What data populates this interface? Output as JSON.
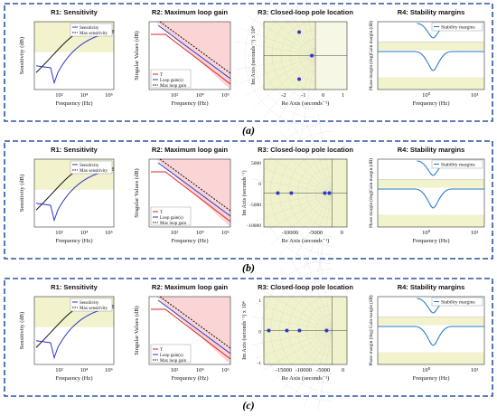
{
  "figure": {
    "rows": [
      {
        "caption": "(a)",
        "panels": {
          "r1": {
            "title": "R1: Sensitivity",
            "ylabel": "Sensitivity (dB)",
            "xlabel": "Frequency (Hz)",
            "xticks": [
              "10²",
              "10⁴",
              "10⁶"
            ],
            "legend": [
              "Sensitivity",
              "Max sensitivity"
            ]
          },
          "r2": {
            "title": "R2: Maximum loop gain",
            "ylabel": "Singular Values (dB)",
            "xlabel": "Frequency (Hz)",
            "xticks": [
              "10²",
              "10⁴",
              "10⁶"
            ],
            "legend": [
              "T",
              "Loop gain(s)",
              "Max loop gain"
            ]
          },
          "r3": {
            "title": "R3: Closed-loop pole location",
            "ylabel": "Im Axis (seconds⁻¹) x 10⁴",
            "xlabel": "Re Axis (seconds⁻¹)",
            "xticks": [
              "-2",
              "-1",
              "0",
              "1"
            ],
            "yticks": []
          },
          "r4": {
            "title": "R4: Stability margins",
            "ylabel": "Phase margin (deg)Gain margin (dB)",
            "xlabel": "Frequency (Hz)",
            "xticks": [
              "10⁰",
              "10¹"
            ],
            "legend": [
              "Stability margins"
            ]
          }
        }
      },
      {
        "caption": "(b)",
        "panels": {
          "r1": {
            "title": "R1: Sensitivity",
            "ylabel": "Sensitivity (dB)",
            "xlabel": "Frequency (Hz)",
            "xticks": [
              "10²",
              "10⁴",
              "10⁶"
            ],
            "legend": [
              "Sensitivity",
              "Max sensitivity"
            ]
          },
          "r2": {
            "title": "R2: Maximum loop gain",
            "ylabel": "Singular Values (dB)",
            "xlabel": "Frequency (Hz)",
            "xticks": [
              "10²",
              "10⁴",
              "10⁶"
            ],
            "legend": [
              "T",
              "Loop gain(s)",
              "Max loop gain"
            ]
          },
          "r3": {
            "title": "R3: Closed-loop pole location",
            "ylabel": "Im Axis (seconds⁻¹)",
            "xlabel": "Re Axis (seconds⁻¹)",
            "xticks": [
              "-10000",
              "-5000",
              "0"
            ],
            "yticks": [
              "5000",
              "0",
              "-5000",
              "-10000"
            ]
          },
          "r4": {
            "title": "R4: Stability margins",
            "ylabel": "Phase margin (deg)Gain margin (dB)",
            "xlabel": "Frequency (Hz)",
            "xticks": [
              "10⁰",
              "10¹"
            ],
            "legend": [
              "Stability margins"
            ]
          }
        }
      },
      {
        "caption": "(c)",
        "panels": {
          "r1": {
            "title": "R1: Sensitivity",
            "ylabel": "Sensitivity (dB)",
            "xlabel": "Frequency (Hz)",
            "xticks": [
              "10²",
              "10⁴",
              "10⁶"
            ],
            "legend": [
              "Sensitivity",
              "Max sensitivity"
            ]
          },
          "r2": {
            "title": "R2: Maximum loop gain",
            "ylabel": "Singular Values (dB)",
            "xlabel": "Frequency (Hz)",
            "xticks": [
              "10²",
              "10⁴",
              "10⁶"
            ],
            "legend": [
              "T",
              "Loop gain(s)",
              "Max loop gain"
            ]
          },
          "r3": {
            "title": "R3: Closed-loop pole location",
            "ylabel": "Im Axis (seconds⁻¹) x 10⁴",
            "xlabel": "Re Axis (seconds⁻¹)",
            "xticks": [
              "-15000",
              "-10000",
              "-5000",
              "0"
            ],
            "yticks": [
              "1",
              "0",
              "-1"
            ]
          },
          "r4": {
            "title": "R4: Stability margins",
            "ylabel": "Phase margin (deg) Gain margin (dB)",
            "xlabel": "Frequency (Hz)",
            "xticks": [
              "10⁰",
              "10¹"
            ],
            "legend": [
              "Stability margins"
            ]
          }
        }
      }
    ]
  },
  "colors": {
    "frame": "#2c54a6",
    "pass_region": "#f2f2cc",
    "fail_region": "#fbd5d5",
    "pole_region": "#f0f2cc",
    "sensitivity_line": "#2b39c9",
    "max_line": "#111111",
    "t_line": "#e02020",
    "loop_line": "#2b39c9",
    "margin_line": "#1f77c8"
  }
}
